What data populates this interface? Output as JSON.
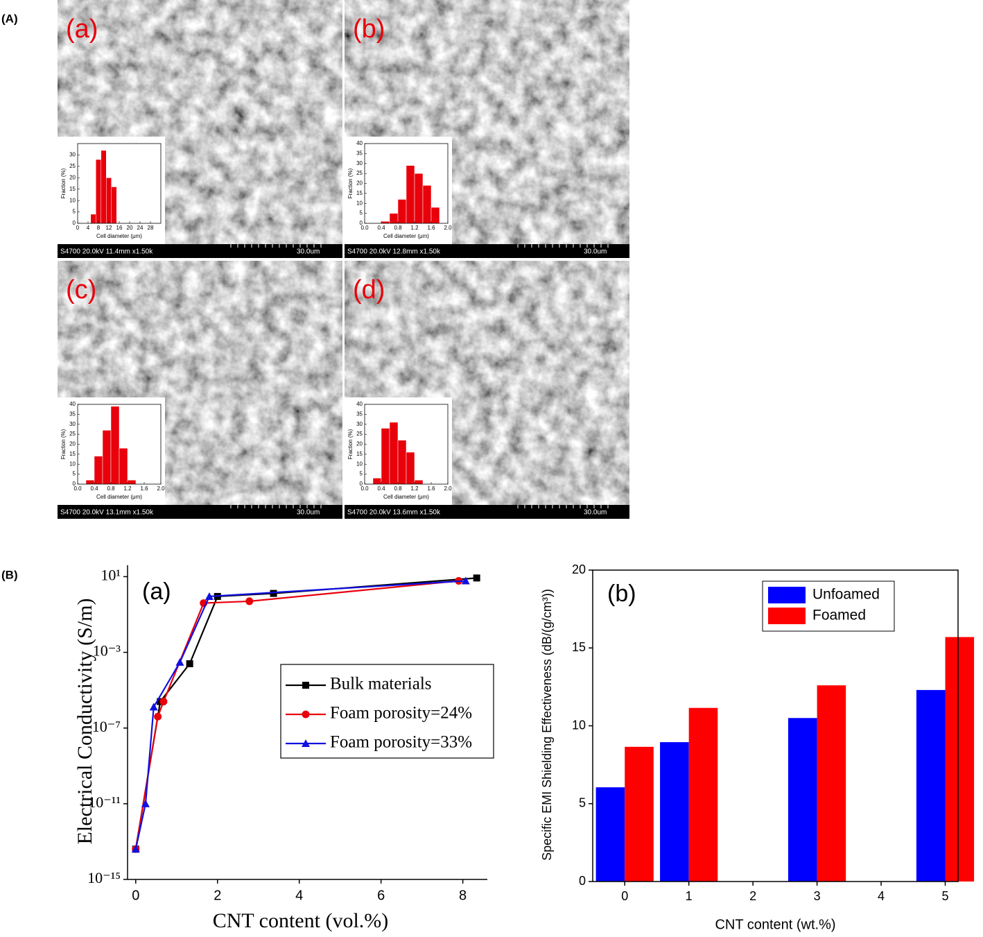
{
  "panel_labels": [
    "(A)",
    "(B)"
  ],
  "sem_panels": [
    {
      "label": "(a)",
      "info": "S4700 20.0kV 11.4mm x1.50k",
      "scale": "30.0um"
    },
    {
      "label": "(b)",
      "info": "S4700 20.0kV 12.8mm x1.50k",
      "scale": "30.0um"
    },
    {
      "label": "(c)",
      "info": "S4700 20.0kV 13.1mm x1.50k",
      "scale": "30.0um"
    },
    {
      "label": "(d)",
      "info": "S4700 20.0kV 13.6mm x1.50k",
      "scale": "30.0um"
    }
  ],
  "chart_data": [
    {
      "type": "histogram",
      "xlabel": "Cell diameter (μm)",
      "ylabel": "Fraction (%)",
      "color": "#e8000b",
      "bins": [
        5,
        7,
        9,
        11,
        13,
        15
      ],
      "values": [
        4,
        28,
        32,
        20,
        16
      ],
      "xlim": [
        0,
        32
      ],
      "xticks": [
        0,
        4,
        8,
        12,
        16,
        20,
        24,
        28
      ],
      "ylim": [
        0,
        35
      ],
      "yticks": [
        0,
        5,
        10,
        15,
        20,
        25,
        30
      ]
    },
    {
      "type": "histogram",
      "xlabel": "Cell diameter (μm)",
      "ylabel": "Fraction (%)",
      "color": "#e8000b",
      "bins": [
        0.4,
        0.6,
        0.8,
        1.0,
        1.2,
        1.4,
        1.6,
        1.8
      ],
      "values": [
        1,
        5,
        12,
        29,
        25,
        19,
        8
      ],
      "xlim": [
        0,
        2
      ],
      "xticks": [
        {
          "value": 0,
          "label": "0.0"
        },
        0.4,
        0.8,
        1.2,
        1.6,
        {
          "value": 2,
          "label": "2.0"
        }
      ],
      "ylim": [
        0,
        40
      ],
      "yticks": [
        0,
        5,
        10,
        15,
        20,
        25,
        30,
        35,
        40
      ]
    },
    {
      "type": "histogram",
      "xlabel": "Cell diameter (μm)",
      "ylabel": "Fraction (%)",
      "color": "#e8000b",
      "bins": [
        0.2,
        0.4,
        0.6,
        0.8,
        1.0,
        1.2,
        1.4
      ],
      "values": [
        2,
        14,
        27,
        39,
        18,
        2
      ],
      "xlim": [
        0,
        2
      ],
      "xticks": [
        {
          "value": 0,
          "label": "0.0"
        },
        0.4,
        0.8,
        1.2,
        1.6,
        {
          "value": 2,
          "label": "2.0"
        }
      ],
      "ylim": [
        0,
        40
      ],
      "yticks": [
        0,
        5,
        10,
        15,
        20,
        25,
        30,
        35,
        40
      ]
    },
    {
      "type": "histogram",
      "xlabel": "Cell diameter (μm)",
      "ylabel": "Fraction (%)",
      "color": "#e8000b",
      "bins": [
        0.2,
        0.4,
        0.6,
        0.8,
        1.0,
        1.2,
        1.4
      ],
      "values": [
        3,
        28,
        31,
        22,
        16,
        2
      ],
      "xlim": [
        0,
        2
      ],
      "xticks": [
        {
          "value": 0,
          "label": "0.0"
        },
        0.4,
        0.8,
        1.2,
        1.6,
        {
          "value": 2,
          "label": "2.0"
        }
      ],
      "ylim": [
        0,
        40
      ],
      "yticks": [
        0,
        5,
        10,
        15,
        20,
        25,
        30,
        35,
        40
      ]
    },
    {
      "type": "line",
      "annotation": "(a)",
      "xlabel": "CNT  content (vol.%)",
      "ylabel": "Electrical Conductivity (S/m)",
      "log_y": true,
      "legend": "center-right",
      "xlim": [
        -0.2,
        8.6
      ],
      "xticks": [
        0,
        2,
        4,
        6,
        8
      ],
      "ylim": [
        1e-15,
        40
      ],
      "yticks": [
        {
          "value": 1e-15,
          "label": "10⁻¹⁵"
        },
        {
          "value": 1e-11,
          "label": "10⁻¹¹"
        },
        {
          "value": 1e-07,
          "label": "10⁻⁷"
        },
        {
          "value": 0.001,
          "label": "10⁻³"
        },
        {
          "value": 10,
          "label": "10¹"
        }
      ],
      "series": [
        {
          "name": "Bulk materials",
          "color": "#000000",
          "marker": "square",
          "x": [
            0,
            0.6,
            1.32,
            2.0,
            3.37,
            8.34
          ],
          "values": [
            4e-14,
            2.5e-06,
            0.00025,
            0.9,
            1.3,
            8.5
          ]
        },
        {
          "name": "Foam porosity=24%",
          "color": "#e8000b",
          "marker": "circle",
          "x": [
            0,
            0.54,
            0.68,
            1.66,
            2.78,
            7.9
          ],
          "values": [
            4e-14,
            4e-07,
            2.5e-06,
            0.4,
            0.5,
            6
          ]
        },
        {
          "name": "Foam porosity=33%",
          "color": "#1010e0",
          "marker": "triangle",
          "x": [
            0,
            0.24,
            0.44,
            1.08,
            1.8,
            8.07
          ],
          "values": [
            4e-14,
            1e-11,
            1.3e-06,
            0.0003,
            0.9,
            6
          ]
        }
      ]
    },
    {
      "type": "bar",
      "annotation": "(b)",
      "xlabel": "CNT content (wt.%)",
      "ylabel": "Specific EMI Shielding Effectiveness (dB/(g/cm³))",
      "legend": "upper-center",
      "x": [
        0,
        1,
        3,
        5
      ],
      "xlim": [
        -0.5,
        5.2
      ],
      "xticks": [
        0,
        1,
        2,
        3,
        4,
        5
      ],
      "ylim": [
        0,
        20
      ],
      "yticks": [
        0,
        5,
        10,
        15,
        20
      ],
      "series": [
        {
          "name": "Unfoamed",
          "color": "#0000ff",
          "values": [
            6.05,
            8.95,
            10.5,
            12.3
          ]
        },
        {
          "name": "Foamed",
          "color": "#ff0000",
          "values": [
            8.65,
            11.15,
            12.6,
            15.7
          ]
        }
      ]
    }
  ]
}
